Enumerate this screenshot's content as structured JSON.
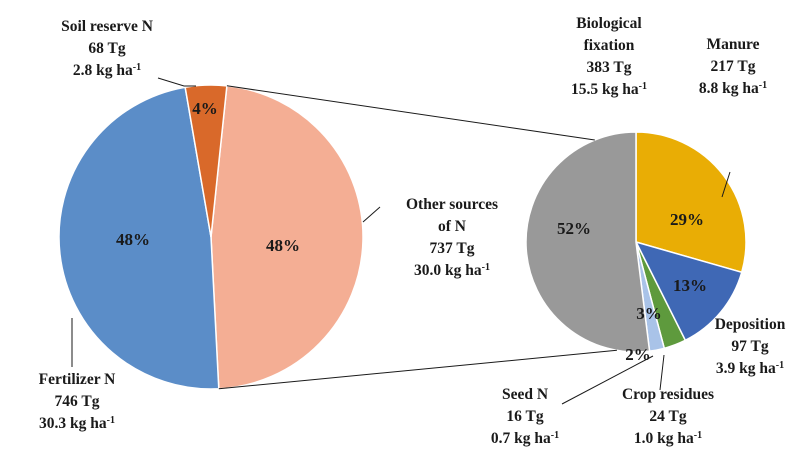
{
  "chart_data": [
    {
      "type": "pie",
      "slices": [
        {
          "key": "other",
          "pct_label": "48%",
          "value": 737,
          "color": "#F4AE94",
          "label": [
            "Other sources",
            "of N",
            "737 Tg",
            "30.0 kg ha-1"
          ]
        },
        {
          "key": "fertilizer",
          "pct_label": "48%",
          "value": 746,
          "color": "#5B8DC8",
          "label": [
            "Fertilizer N",
            "746 Tg",
            "30.3 kg ha-1"
          ]
        },
        {
          "key": "soil",
          "pct_label": "4%",
          "value": 68,
          "color": "#D9692A",
          "label": [
            "Soil reserve N",
            "68 Tg",
            "2.8 kg ha-1"
          ]
        }
      ]
    },
    {
      "type": "pie",
      "slices": [
        {
          "key": "manure",
          "pct_label": "29%",
          "value": 217,
          "color": "#E9AD05",
          "label": [
            "Manure",
            "217 Tg",
            "8.8 kg ha-1"
          ]
        },
        {
          "key": "deposition",
          "pct_label": "13%",
          "value": 97,
          "color": "#3F68B5",
          "label": [
            "Deposition",
            "97 Tg",
            "3.9 kg ha-1"
          ]
        },
        {
          "key": "crop",
          "pct_label": "3%",
          "value": 24,
          "color": "#5E9A3D",
          "label": [
            "Crop residues",
            "24 Tg",
            "1.0 kg ha-1"
          ]
        },
        {
          "key": "seed",
          "pct_label": "2%",
          "value": 16,
          "color": "#A9C3E8",
          "label": [
            "Seed N",
            "16 Tg",
            "0.7 kg ha-1"
          ]
        },
        {
          "key": "biological",
          "pct_label": "52%",
          "value": 383,
          "color": "#999999",
          "label": [
            "Biological",
            "fixation",
            "383 Tg",
            "15.5 kg ha-1"
          ]
        }
      ]
    }
  ]
}
